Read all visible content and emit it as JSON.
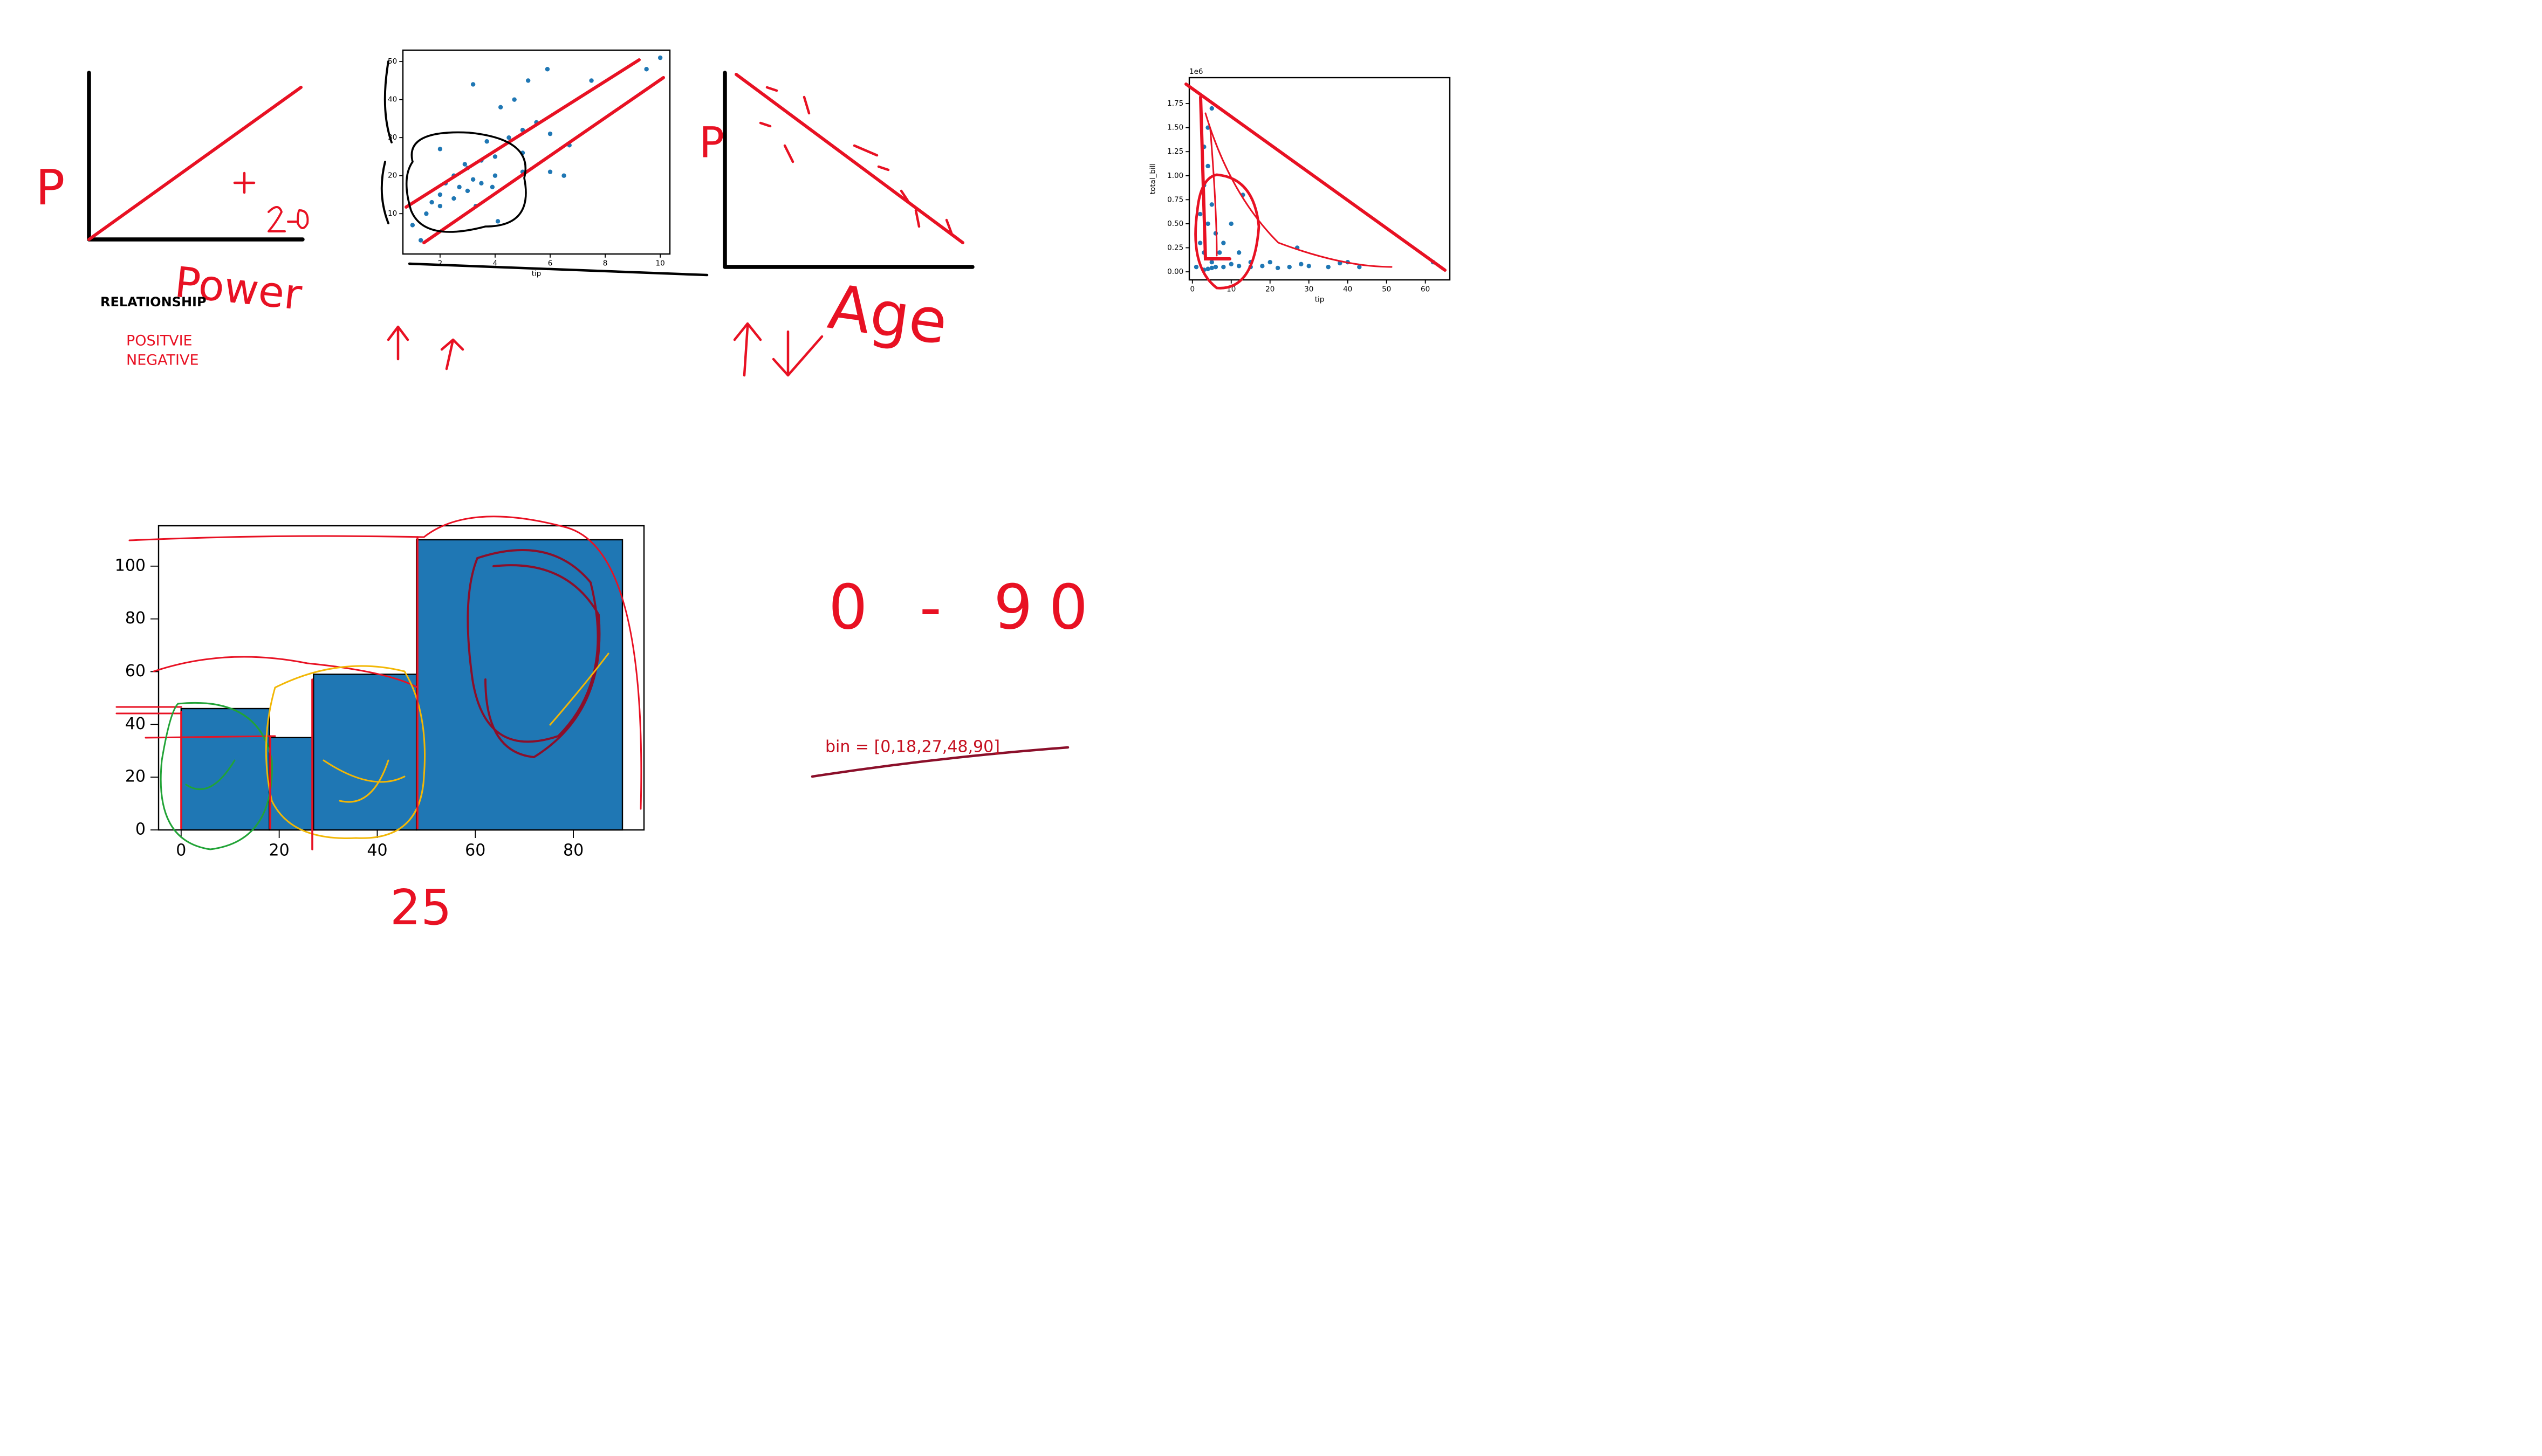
{
  "notes": {
    "title": "RELATIONSHIP",
    "items": [
      "POSITVIE",
      "NEGATIVE"
    ],
    "bin": "bin = [0,18,27,48,90]"
  },
  "handwriting": [
    "P",
    "Power",
    "P",
    "Age",
    "0 - 90",
    "25"
  ],
  "chart_data": [
    {
      "type": "scatter",
      "xlabel": "tip",
      "color": "#1f77b4",
      "x": [
        1.0,
        1.5,
        1.7,
        2.0,
        2.0,
        2.2,
        2.5,
        2.5,
        2.7,
        3.0,
        3.0,
        3.2,
        3.5,
        3.5,
        3.7,
        4.0,
        4.0,
        4.2,
        4.5,
        5.0,
        5.0,
        5.2,
        5.5,
        6.0,
        6.5,
        6.7,
        7.5,
        5.9,
        3.2,
        4.7,
        2.0,
        1.3,
        3.9,
        9.5,
        10.0,
        5.0,
        4.1,
        6.0,
        2.9,
        3.3
      ],
      "values": [
        7,
        10,
        13,
        15,
        12,
        18,
        14,
        20,
        17,
        16,
        22,
        19,
        24,
        18,
        29,
        25,
        20,
        38,
        30,
        26,
        32,
        45,
        34,
        31,
        20,
        28,
        45,
        48,
        44,
        40,
        27,
        3,
        17,
        48,
        51,
        21,
        8,
        21,
        23,
        12
      ],
      "xlim": [
        0.65,
        10.35
      ],
      "ylim": [
        -0.6,
        53
      ],
      "xticks": [
        2,
        4,
        6,
        8,
        10
      ],
      "yticks": [
        10,
        20,
        30,
        40,
        50
      ]
    },
    {
      "type": "scatter",
      "xlabel": "tip",
      "ylabel": "total_bill",
      "offset_label": "1e6",
      "color": "#1f77b4",
      "x": [
        1,
        2,
        2,
        3,
        3,
        3,
        4,
        4,
        4,
        5,
        5,
        5,
        6,
        7,
        8,
        10,
        12,
        15,
        6,
        3,
        4,
        5,
        8,
        10,
        13,
        15,
        18,
        20,
        22,
        25,
        28,
        30,
        35,
        38,
        40,
        43,
        62,
        12,
        27
      ],
      "values": [
        0.05,
        0.3,
        0.6,
        0.2,
        0.9,
        1.3,
        0.5,
        1.1,
        1.5,
        0.1,
        0.7,
        1.7,
        0.4,
        0.2,
        0.05,
        0.08,
        0.06,
        0.1,
        0.05,
        0.02,
        0.03,
        0.04,
        0.3,
        0.5,
        0.8,
        0.05,
        0.06,
        0.1,
        0.04,
        0.05,
        0.08,
        0.06,
        0.05,
        0.09,
        0.1,
        0.05,
        0.1,
        0.2,
        0.25
      ],
      "xlim": [
        -0.8,
        66.3
      ],
      "ylim": [
        -0.084,
        2.02
      ],
      "xticks": [
        0,
        10,
        20,
        30,
        40,
        50,
        60
      ],
      "yticks": [
        {
          "value": 0,
          "label": "0.00"
        },
        {
          "value": 0.25,
          "label": "0.25"
        },
        {
          "value": 0.5,
          "label": "0.50"
        },
        {
          "value": 0.75,
          "label": "0.75"
        },
        {
          "value": 1,
          "label": "1.00"
        },
        {
          "value": 1.25,
          "label": "1.25"
        },
        {
          "value": 1.5,
          "label": "1.50"
        },
        {
          "value": 1.75,
          "label": "1.75"
        }
      ]
    },
    {
      "type": "histogram",
      "color": "#1f77b4",
      "bins": [
        0,
        18,
        27,
        48,
        90
      ],
      "values": [
        46,
        35,
        59,
        110
      ],
      "xlim": [
        -4.6,
        94.4
      ],
      "ylim": [
        0,
        115.3
      ],
      "xticks": [
        0,
        20,
        40,
        60,
        80
      ],
      "yticks": [
        0,
        20,
        40,
        60,
        80,
        100
      ]
    }
  ]
}
